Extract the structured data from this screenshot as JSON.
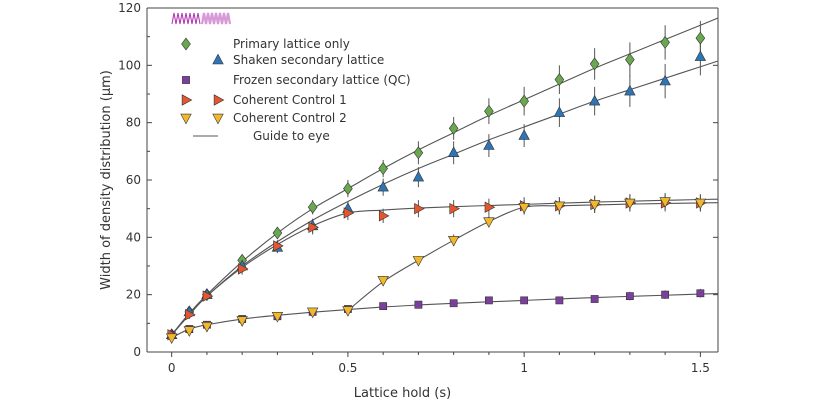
{
  "chart_data": {
    "type": "scatter",
    "xlabel": "Lattice hold (s)",
    "ylabel": "Width of density distribution (μm)",
    "xlim": [
      -0.07,
      1.55
    ],
    "ylim": [
      0,
      120
    ],
    "xticks": [
      0,
      0.5,
      1,
      1.5
    ],
    "xtick_labels": [
      "0",
      "0.5",
      "1",
      "1.5"
    ],
    "yticks": [
      0,
      20,
      40,
      60,
      80,
      100,
      120
    ],
    "ytick_labels": [
      "0",
      "20",
      "40",
      "60",
      "80",
      "100",
      "120"
    ],
    "grid": false,
    "legend_position": "top-left",
    "legend_icon": "lattice-wave-icon",
    "series": [
      {
        "name": "Primary lattice only",
        "marker": "diamond",
        "color": "#6aa84f",
        "x": [
          0,
          0.05,
          0.1,
          0.2,
          0.3,
          0.4,
          0.5,
          0.6,
          0.7,
          0.8,
          0.9,
          1.0,
          1.1,
          1.2,
          1.3,
          1.4,
          1.5
        ],
        "y": [
          6,
          14,
          20,
          32,
          41.5,
          50.5,
          57,
          64,
          69.5,
          78,
          84,
          87.5,
          95,
          100.5,
          102,
          108,
          109.5
        ],
        "err": [
          1.5,
          1.5,
          1.5,
          2,
          2,
          2.5,
          3,
          3,
          4,
          4,
          4.5,
          5,
          5,
          5.5,
          6,
          6,
          6
        ]
      },
      {
        "name": "Shaken secondary lattice",
        "marker": "triangle-up",
        "color": "#2e75b6",
        "x": [
          0,
          0.05,
          0.1,
          0.2,
          0.3,
          0.4,
          0.5,
          0.6,
          0.7,
          0.8,
          0.9,
          1.0,
          1.1,
          1.2,
          1.3,
          1.4,
          1.5
        ],
        "y": [
          6,
          14,
          20,
          30,
          36.5,
          44,
          50,
          57.5,
          61,
          69.5,
          72,
          75.5,
          83.5,
          87.5,
          91,
          94.5,
          103
        ],
        "err": [
          1.5,
          1.5,
          1.5,
          2,
          2,
          2.5,
          2.5,
          3,
          3.5,
          4,
          4,
          4,
          5,
          5,
          5.5,
          6,
          6.5
        ]
      },
      {
        "name": "Frozen secondary lattice (QC)",
        "marker": "square",
        "color": "#7b3f9e",
        "x": [
          0,
          0.05,
          0.1,
          0.2,
          0.3,
          0.4,
          0.5,
          0.6,
          0.7,
          0.8,
          0.9,
          1.0,
          1.1,
          1.2,
          1.3,
          1.4,
          1.5
        ],
        "y": [
          6,
          8,
          9.5,
          11.5,
          12.5,
          14,
          15,
          16,
          16.5,
          17,
          18,
          18,
          18,
          18.5,
          19.5,
          20,
          20.5
        ],
        "err": [
          1,
          1,
          1,
          1,
          1,
          1,
          1,
          1,
          1,
          1,
          1,
          1,
          1,
          1,
          1.5,
          1.5,
          1.5
        ]
      },
      {
        "name": "Coherent Control 1",
        "marker": "triangle-right",
        "color": "#e4572e",
        "x": [
          0,
          0.05,
          0.1,
          0.2,
          0.3,
          0.4,
          0.5,
          0.6,
          0.7,
          0.8,
          0.9,
          1.0,
          1.1,
          1.2,
          1.3,
          1.4,
          1.5
        ],
        "y": [
          6,
          13,
          19.5,
          29,
          37,
          43.5,
          48.5,
          47.5,
          50,
          50,
          50.5,
          51,
          51,
          51.5,
          52,
          52,
          52
        ],
        "err": [
          1.5,
          1.5,
          1.5,
          2,
          2,
          2.5,
          2.5,
          2.5,
          3,
          3,
          3,
          3,
          3,
          3,
          3,
          3,
          3
        ]
      },
      {
        "name": "Coherent Control 2",
        "marker": "triangle-down",
        "color": "#f1b82d",
        "x": [
          0,
          0.05,
          0.1,
          0.2,
          0.3,
          0.4,
          0.5,
          0.6,
          0.7,
          0.8,
          0.9,
          1.0,
          1.1,
          1.2,
          1.3,
          1.4,
          1.5
        ],
        "y": [
          5,
          7.5,
          9,
          11,
          12.5,
          14,
          14.5,
          25,
          32,
          39,
          45.5,
          50.5,
          51,
          51.5,
          52,
          52.5,
          52
        ],
        "err": [
          1,
          1,
          1,
          1,
          1,
          1,
          1,
          1.5,
          1.5,
          2,
          2,
          2.5,
          3,
          3,
          3,
          3,
          3
        ]
      }
    ],
    "guide_to_eye": {
      "name": "Guide to eye",
      "color": "#555555",
      "curves": [
        {
          "x": [
            0,
            0.05,
            0.1,
            0.2,
            0.3,
            0.4,
            0.5,
            0.6,
            0.7,
            0.8,
            0.9,
            1.0,
            1.1,
            1.2,
            1.3,
            1.4,
            1.5,
            1.55
          ],
          "y": [
            6,
            13.5,
            20,
            31.5,
            41.5,
            50,
            57,
            64,
            70.5,
            76.5,
            82.5,
            88,
            93.5,
            99,
            104,
            109,
            114,
            116.5
          ]
        },
        {
          "x": [
            0,
            0.05,
            0.1,
            0.2,
            0.3,
            0.4,
            0.5,
            0.6,
            0.7,
            0.8,
            0.9,
            1.0,
            1.1,
            1.2,
            1.3,
            1.4,
            1.5,
            1.55
          ],
          "y": [
            6,
            13,
            19.5,
            30,
            38.5,
            46,
            52.5,
            58.5,
            64,
            69,
            74,
            78.5,
            83,
            87.5,
            91.5,
            95.5,
            99.5,
            101.5
          ]
        },
        {
          "x": [
            0,
            0.05,
            0.1,
            0.2,
            0.3,
            0.4,
            0.5,
            0.6,
            0.7,
            0.8,
            0.9,
            1.0,
            1.1,
            1.2,
            1.3,
            1.4,
            1.5,
            1.55
          ],
          "y": [
            6,
            13,
            19.5,
            29.5,
            37.5,
            44,
            48.5,
            49.5,
            50.2,
            50.7,
            51.1,
            51.5,
            51.9,
            52.3,
            52.6,
            52.9,
            53.2,
            53.3
          ]
        },
        {
          "x": [
            0,
            0.05,
            0.1,
            0.2,
            0.3,
            0.4,
            0.5,
            0.6,
            0.7,
            0.8,
            0.9,
            1.0,
            1.1,
            1.2,
            1.3,
            1.4,
            1.5,
            1.55
          ],
          "y": [
            5,
            8,
            9.5,
            11.5,
            12.8,
            13.9,
            14.8,
            15.7,
            16.4,
            17,
            17.5,
            18,
            18.5,
            19,
            19.4,
            19.8,
            20.2,
            20.4
          ]
        },
        {
          "x": [
            0.5,
            0.6,
            0.7,
            0.8,
            0.9,
            1.0,
            1.1,
            1.2,
            1.3,
            1.4,
            1.5,
            1.55
          ],
          "y": [
            14.5,
            24.5,
            32,
            39,
            45.5,
            50.5,
            51,
            51.3,
            51.6,
            51.8,
            52,
            52.1
          ]
        }
      ]
    }
  }
}
